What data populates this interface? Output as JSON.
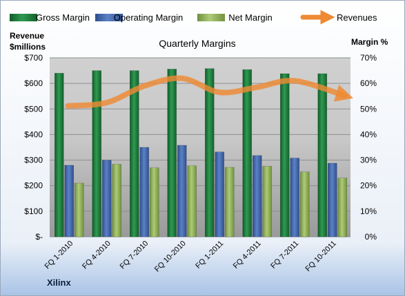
{
  "chart_data": {
    "type": "bar",
    "title": "Quarterly Margins",
    "left_axis_label_line1": "Revenue",
    "left_axis_label_line2": "$millions",
    "right_axis_label": "Margin %",
    "company": "Xilinx",
    "categories": [
      "FQ 1-2010",
      "FQ 4-2010",
      "FQ 7-2010",
      "FQ 10-2010",
      "FQ 1-2011",
      "FQ 4-2011",
      "FQ 7-2011",
      "FQ 10-2011"
    ],
    "left_ylim": [
      0,
      700
    ],
    "left_ticks": [
      0,
      100,
      200,
      300,
      400,
      500,
      600,
      700
    ],
    "left_tick_labels": [
      "$-",
      "$100",
      "$200",
      "$300",
      "$400",
      "$500",
      "$600",
      "$700"
    ],
    "right_ylim": [
      0,
      70
    ],
    "right_ticks": [
      0,
      10,
      20,
      30,
      40,
      50,
      60,
      70
    ],
    "right_tick_labels": [
      "0%",
      "10%",
      "20%",
      "30%",
      "40%",
      "50%",
      "60%",
      "70%"
    ],
    "series": [
      {
        "name": "Gross Margin",
        "axis": "right",
        "kind": "bar",
        "color": "#1E7A3A",
        "values": [
          64,
          65,
          65,
          65.6,
          65.8,
          65.4,
          63.8,
          63.8
        ]
      },
      {
        "name": "Operating Margin",
        "axis": "right",
        "kind": "bar",
        "color": "#3E63A8",
        "values": [
          28,
          30,
          35,
          35.8,
          33.2,
          31.8,
          30.8,
          28.8
        ]
      },
      {
        "name": "Net Margin",
        "axis": "right",
        "kind": "bar",
        "color": "#8FB35A",
        "values": [
          21,
          28.4,
          27,
          27.8,
          27.2,
          27.6,
          25.4,
          23
        ]
      },
      {
        "name": "Revenues",
        "axis": "left",
        "kind": "line",
        "color": "#EE8A33",
        "values": [
          512,
          525,
          590,
          620,
          565,
          585,
          610,
          552
        ]
      }
    ],
    "grid": true,
    "legend_position": "top"
  }
}
